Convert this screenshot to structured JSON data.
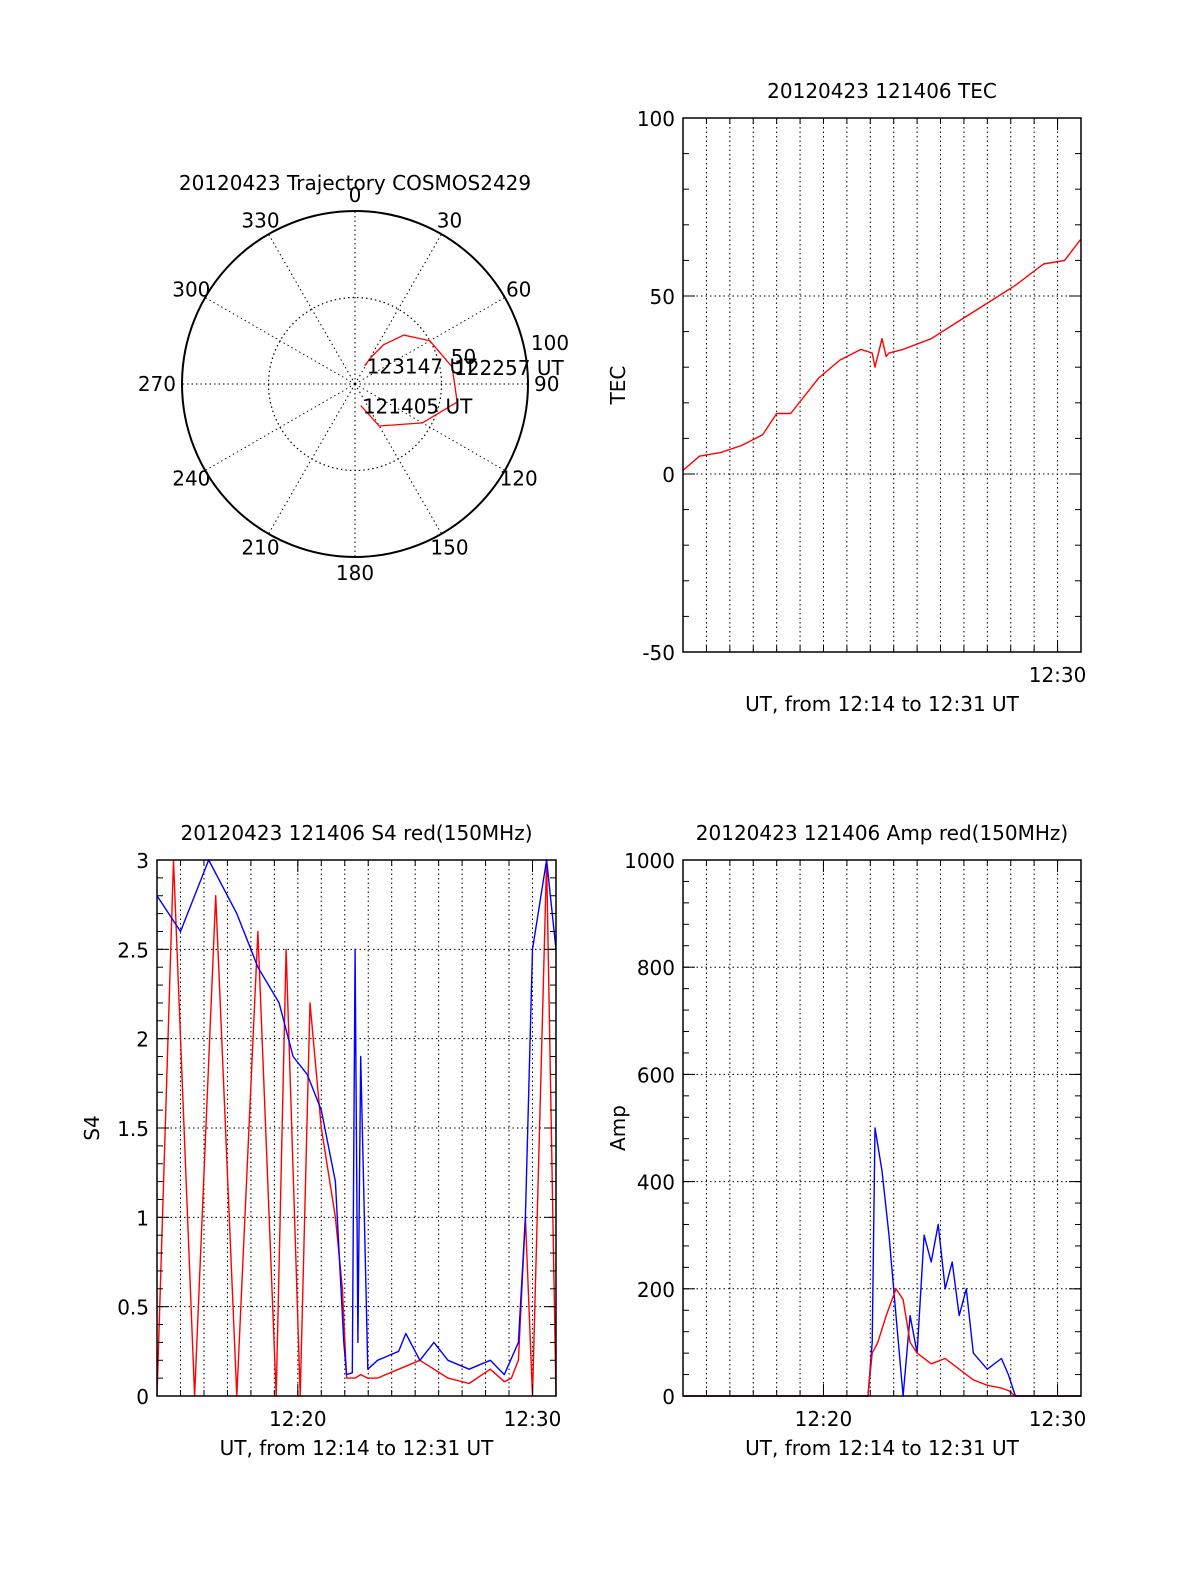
{
  "chart_data": [
    {
      "type": "polar",
      "title": "20120423 Trajectory COSMOS2429",
      "angle_ticks": [
        0,
        30,
        60,
        90,
        120,
        150,
        180,
        210,
        240,
        270,
        300,
        330
      ],
      "angle_labels": [
        "0",
        "30",
        "60",
        "90",
        "120",
        "150",
        "180",
        "210",
        "240",
        "270",
        "300",
        "330"
      ],
      "radial_ticks": [
        50,
        100
      ],
      "radial_labels": [
        "50",
        "100"
      ],
      "rlim": [
        0,
        100
      ],
      "series": [
        {
          "color": "#ff0000",
          "points": [
            {
              "az": 165,
              "el": 13
            },
            {
              "az": 150,
              "el": 28
            },
            {
              "az": 120,
              "el": 45
            },
            {
              "az": 100,
              "el": 60
            },
            {
              "az": 80,
              "el": 57
            },
            {
              "az": 60,
              "el": 50
            },
            {
              "az": 45,
              "el": 40
            },
            {
              "az": 36,
              "el": 28
            },
            {
              "az": 31,
              "el": 18
            },
            {
              "az": 28,
              "el": 12
            }
          ]
        }
      ],
      "annotations": [
        {
          "text": "123147 UT",
          "az": 28,
          "el": 12
        },
        {
          "text": "122257 UT",
          "az": 80,
          "el": 57
        },
        {
          "text": "121405 UT",
          "az": 165,
          "el": 13
        }
      ]
    },
    {
      "type": "line",
      "title": "20120423 121406 TEC",
      "xlabel": "UT, from 12:14 to 12:31 UT",
      "ylabel": "TEC",
      "xlim": [
        12.2333,
        12.5167
      ],
      "ylim": [
        -50,
        100
      ],
      "xticks": [
        12.5
      ],
      "xtick_labels": [
        "12:30"
      ],
      "yticks": [
        -50,
        0,
        50,
        100
      ],
      "ytick_labels": [
        "-50",
        "0",
        "50",
        "100"
      ],
      "grid": true,
      "series": [
        {
          "color": "#ff0000",
          "x": [
            12.2333,
            12.245,
            12.26,
            12.275,
            12.29,
            12.3,
            12.31,
            12.33,
            12.345,
            12.36,
            12.368,
            12.37,
            12.375,
            12.378,
            12.38,
            12.39,
            12.41,
            12.43,
            12.45,
            12.47,
            12.49,
            12.505,
            12.5167
          ],
          "y": [
            1,
            5,
            6,
            8,
            11,
            17,
            17,
            27,
            32,
            35,
            34,
            30,
            38,
            33,
            34,
            35,
            38,
            43,
            48,
            53,
            59,
            60,
            66
          ]
        }
      ]
    },
    {
      "type": "line",
      "title": "20120423 121406 S4 red(150MHz)",
      "xlabel": "UT, from 12:14 to 12:31 UT",
      "ylabel": "S4",
      "xlim": [
        12.2333,
        12.5167
      ],
      "ylim": [
        0,
        3
      ],
      "xticks": [
        12.3333,
        12.5
      ],
      "xtick_labels": [
        "12:20",
        "12:30"
      ],
      "yticks": [
        0,
        0.5,
        1,
        1.5,
        2,
        2.5,
        3
      ],
      "ytick_labels": [
        "0",
        "0.5",
        "1",
        "1.5",
        "2",
        "2.5",
        "3"
      ],
      "grid": true,
      "series": [
        {
          "color": "#ff0000",
          "x": [
            12.2333,
            12.245,
            12.26,
            12.275,
            12.29,
            12.305,
            12.318,
            12.325,
            12.335,
            12.342,
            12.35,
            12.36,
            12.365,
            12.368,
            12.371,
            12.374,
            12.378,
            12.383,
            12.39,
            12.405,
            12.42,
            12.44,
            12.455,
            12.47,
            12.48,
            12.485,
            12.49,
            12.495,
            12.5,
            12.51,
            12.5167
          ],
          "y": [
            0,
            3,
            0,
            2.8,
            0,
            2.6,
            0,
            2.5,
            0,
            2.2,
            1.5,
            1.0,
            0.6,
            0.1,
            0.1,
            0.1,
            0.12,
            0.1,
            0.1,
            0.15,
            0.2,
            0.1,
            0.07,
            0.15,
            0.08,
            0.1,
            0.2,
            1.0,
            0,
            3,
            0
          ]
        },
        {
          "color": "#0000ff",
          "x": [
            12.2333,
            12.25,
            12.27,
            12.29,
            12.305,
            12.32,
            12.33,
            12.34,
            12.35,
            12.36,
            12.366,
            12.368,
            12.372,
            12.374,
            12.376,
            12.378,
            12.383,
            12.39,
            12.405,
            12.41,
            12.42,
            12.43,
            12.44,
            12.455,
            12.47,
            12.48,
            12.49,
            12.495,
            12.5,
            12.51,
            12.5167
          ],
          "y": [
            2.8,
            2.6,
            3.0,
            2.7,
            2.4,
            2.2,
            1.9,
            1.8,
            1.6,
            1.2,
            0.3,
            0.12,
            0.13,
            2.5,
            0.3,
            1.9,
            0.15,
            0.2,
            0.25,
            0.35,
            0.2,
            0.3,
            0.2,
            0.15,
            0.2,
            0.12,
            0.3,
            1.0,
            2.5,
            3.0,
            2.5
          ]
        }
      ]
    },
    {
      "type": "line",
      "title": "20120423 121406 Amp red(150MHz)",
      "xlabel": "UT, from 12:14 to 12:31 UT",
      "ylabel": "Amp",
      "xlim": [
        12.2333,
        12.5167
      ],
      "ylim": [
        0,
        1000
      ],
      "xticks": [
        12.3333,
        12.5
      ],
      "xtick_labels": [
        "12:20",
        "12:30"
      ],
      "yticks": [
        0,
        200,
        400,
        600,
        800,
        1000
      ],
      "ytick_labels": [
        "0",
        "200",
        "400",
        "600",
        "800",
        "1000"
      ],
      "grid": true,
      "series": [
        {
          "color": "#0000ff",
          "x": [
            12.2333,
            12.365,
            12.368,
            12.37,
            12.375,
            12.38,
            12.385,
            12.39,
            12.395,
            12.4,
            12.405,
            12.41,
            12.415,
            12.42,
            12.425,
            12.43,
            12.435,
            12.44,
            12.45,
            12.46,
            12.465,
            12.47,
            12.5167
          ],
          "y": [
            0,
            0,
            100,
            500,
            420,
            300,
            150,
            0,
            150,
            80,
            300,
            250,
            320,
            200,
            250,
            150,
            200,
            80,
            50,
            70,
            40,
            0,
            0
          ]
        },
        {
          "color": "#ff0000",
          "x": [
            12.2333,
            12.365,
            12.368,
            12.372,
            12.378,
            12.385,
            12.39,
            12.395,
            12.4,
            12.41,
            12.42,
            12.43,
            12.44,
            12.45,
            12.46,
            12.465,
            12.47,
            12.5167
          ],
          "y": [
            0,
            0,
            80,
            100,
            150,
            200,
            180,
            100,
            80,
            60,
            70,
            50,
            30,
            20,
            15,
            10,
            0,
            0
          ]
        }
      ]
    }
  ]
}
